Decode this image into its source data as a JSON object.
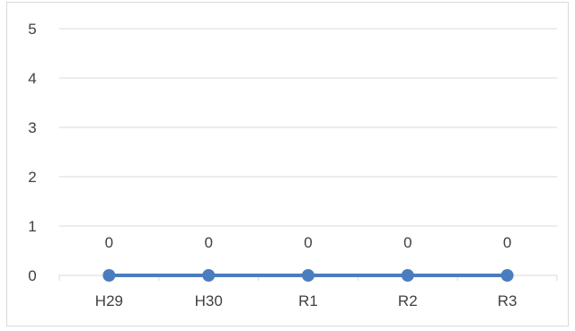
{
  "chart_data": {
    "type": "line",
    "title": "",
    "xlabel": "",
    "ylabel": "",
    "categories": [
      "H29",
      "H30",
      "R1",
      "R2",
      "R3"
    ],
    "series": [
      {
        "values": [
          0,
          0,
          0,
          0,
          0
        ],
        "color": "#4a7dbf"
      }
    ],
    "ylim": [
      0,
      5
    ],
    "yticks": [
      0,
      1,
      2,
      3,
      4,
      5
    ],
    "grid": true,
    "gridColor": "#d9d9d9",
    "data_labels": true,
    "legend": "none"
  }
}
